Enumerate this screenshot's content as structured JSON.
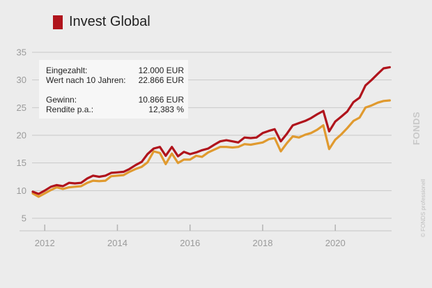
{
  "legend": {
    "label": "Invest Global",
    "color": "#b0141c"
  },
  "info": {
    "rows": [
      {
        "label": "Eingezahlt:",
        "value": "12.000 EUR"
      },
      {
        "label": "Wert nach 10 Jahren:",
        "value": "22.866 EUR"
      },
      {
        "label": "Gewinn:",
        "value": "10.866 EUR"
      },
      {
        "label": "Rendite p.a.:",
        "value": "12,383 %"
      }
    ]
  },
  "watermark": {
    "brand": "FONDS",
    "copyright": "© FONDS professionell"
  },
  "chart_data": {
    "type": "line",
    "title": "",
    "xlabel": "",
    "ylabel": "",
    "xlim": [
      2011.65,
      2021.55
    ],
    "ylim": [
      5,
      35
    ],
    "yticks": [
      5,
      10,
      15,
      20,
      25,
      30,
      35
    ],
    "yticklabels": [
      "5",
      "10",
      "15",
      "20",
      "25",
      "30",
      "35"
    ],
    "xticks": [
      2012,
      2014,
      2016,
      2018,
      2020
    ],
    "xticklabels": [
      "2012",
      "2014",
      "2016",
      "2018",
      "2020"
    ],
    "grid": "horizontal",
    "legend_position": "top-left",
    "series": [
      {
        "name": "Invest Global",
        "color": "#b0141c",
        "x": [
          2011.67,
          2011.83,
          2012.0,
          2012.17,
          2012.33,
          2012.5,
          2012.67,
          2012.83,
          2013.0,
          2013.17,
          2013.33,
          2013.5,
          2013.67,
          2013.83,
          2014.0,
          2014.17,
          2014.33,
          2014.5,
          2014.67,
          2014.83,
          2015.0,
          2015.17,
          2015.33,
          2015.5,
          2015.67,
          2015.83,
          2016.0,
          2016.17,
          2016.33,
          2016.5,
          2016.67,
          2016.83,
          2017.0,
          2017.17,
          2017.33,
          2017.5,
          2017.67,
          2017.83,
          2018.0,
          2018.17,
          2018.33,
          2018.5,
          2018.67,
          2018.83,
          2019.0,
          2019.17,
          2019.33,
          2019.5,
          2019.67,
          2019.83,
          2020.0,
          2020.17,
          2020.33,
          2020.5,
          2020.67,
          2020.83,
          2021.0,
          2021.17,
          2021.33,
          2021.5
        ],
        "values": [
          9.8,
          9.4,
          10.0,
          10.7,
          11.0,
          10.8,
          11.4,
          11.3,
          11.4,
          12.2,
          12.7,
          12.5,
          12.7,
          13.2,
          13.3,
          13.4,
          13.9,
          14.6,
          15.2,
          16.6,
          17.6,
          17.9,
          16.3,
          17.9,
          16.2,
          17.0,
          16.6,
          16.9,
          17.3,
          17.6,
          18.3,
          18.9,
          19.1,
          18.9,
          18.7,
          19.6,
          19.5,
          19.6,
          20.4,
          20.8,
          21.1,
          18.9,
          20.3,
          21.8,
          22.2,
          22.6,
          23.1,
          23.8,
          24.4,
          20.7,
          22.5,
          23.4,
          24.3,
          26.0,
          26.8,
          29.0,
          30.0,
          31.1,
          32.1,
          32.3
        ]
      },
      {
        "name": "",
        "color": "#e09a2f",
        "x": [
          2011.67,
          2011.83,
          2012.0,
          2012.17,
          2012.33,
          2012.5,
          2012.67,
          2012.83,
          2013.0,
          2013.17,
          2013.33,
          2013.5,
          2013.67,
          2013.83,
          2014.0,
          2014.17,
          2014.33,
          2014.5,
          2014.67,
          2014.83,
          2015.0,
          2015.17,
          2015.33,
          2015.5,
          2015.67,
          2015.83,
          2016.0,
          2016.17,
          2016.33,
          2016.5,
          2016.67,
          2016.83,
          2017.0,
          2017.17,
          2017.33,
          2017.5,
          2017.67,
          2017.83,
          2018.0,
          2018.17,
          2018.33,
          2018.5,
          2018.67,
          2018.83,
          2019.0,
          2019.17,
          2019.33,
          2019.5,
          2019.67,
          2019.83,
          2020.0,
          2020.17,
          2020.33,
          2020.5,
          2020.67,
          2020.83,
          2021.0,
          2021.17,
          2021.33,
          2021.5
        ],
        "values": [
          9.5,
          8.9,
          9.5,
          10.1,
          10.6,
          10.3,
          10.6,
          10.7,
          10.8,
          11.4,
          11.8,
          11.7,
          11.8,
          12.6,
          12.7,
          12.8,
          13.4,
          13.9,
          14.3,
          15.1,
          17.1,
          16.8,
          14.8,
          16.7,
          15.0,
          15.6,
          15.6,
          16.3,
          16.1,
          16.9,
          17.4,
          17.9,
          17.9,
          17.8,
          17.9,
          18.4,
          18.3,
          18.5,
          18.7,
          19.3,
          19.5,
          17.1,
          18.6,
          19.8,
          19.6,
          20.1,
          20.4,
          21.0,
          21.8,
          17.5,
          19.2,
          20.2,
          21.3,
          22.6,
          23.2,
          25.0,
          25.4,
          25.9,
          26.2,
          26.3
        ]
      }
    ]
  }
}
